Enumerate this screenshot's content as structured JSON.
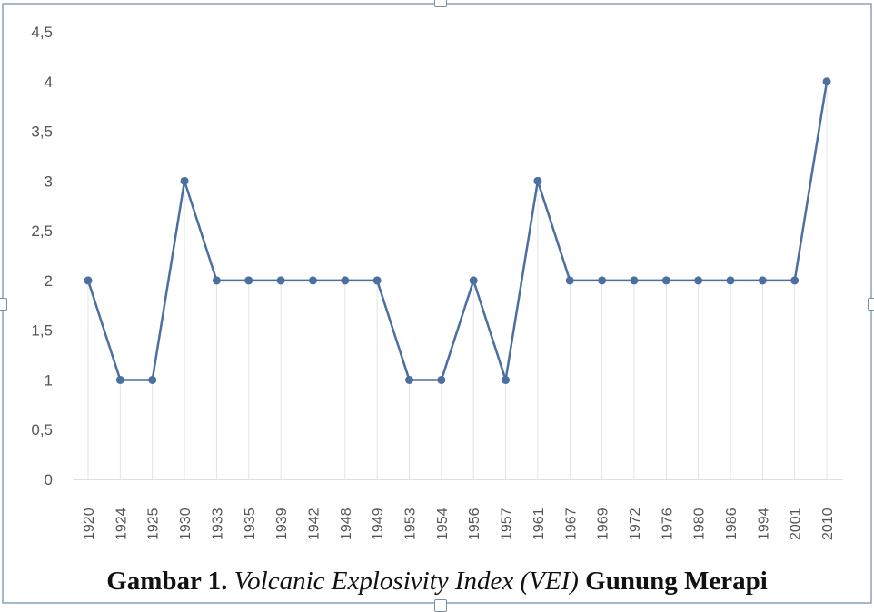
{
  "caption": {
    "prefix": "Gambar 1.",
    "italic": "Volcanic Explosivity Index (VEI)",
    "suffix": "Gunung Merapi"
  },
  "colors": {
    "line": "#4a6fa0",
    "grid": "#e3e3e3",
    "axis": "#bfbfbf",
    "frame": "#8aa0bb"
  },
  "chart_data": {
    "type": "line",
    "title": "",
    "xlabel": "",
    "ylabel": "",
    "categories": [
      "1920",
      "1924",
      "1925",
      "1930",
      "1933",
      "1935",
      "1939",
      "1942",
      "1948",
      "1949",
      "1953",
      "1954",
      "1956",
      "1957",
      "1961",
      "1967",
      "1969",
      "1972",
      "1976",
      "1980",
      "1986",
      "1994",
      "2001",
      "2010"
    ],
    "series": [
      {
        "name": "VEI",
        "values": [
          2,
          1,
          1,
          3,
          2,
          2,
          2,
          2,
          2,
          2,
          1,
          1,
          2,
          1,
          3,
          2,
          2,
          2,
          2,
          2,
          2,
          2,
          2,
          4
        ]
      }
    ],
    "ylim": [
      0,
      4.5
    ],
    "yticks": [
      "0",
      "0,5",
      "1",
      "1,5",
      "2",
      "2,5",
      "3",
      "3,5",
      "4",
      "4,5"
    ],
    "ytick_values": [
      0,
      0.5,
      1,
      1.5,
      2,
      2.5,
      3,
      3.5,
      4,
      4.5
    ],
    "vertical_grid": true
  }
}
